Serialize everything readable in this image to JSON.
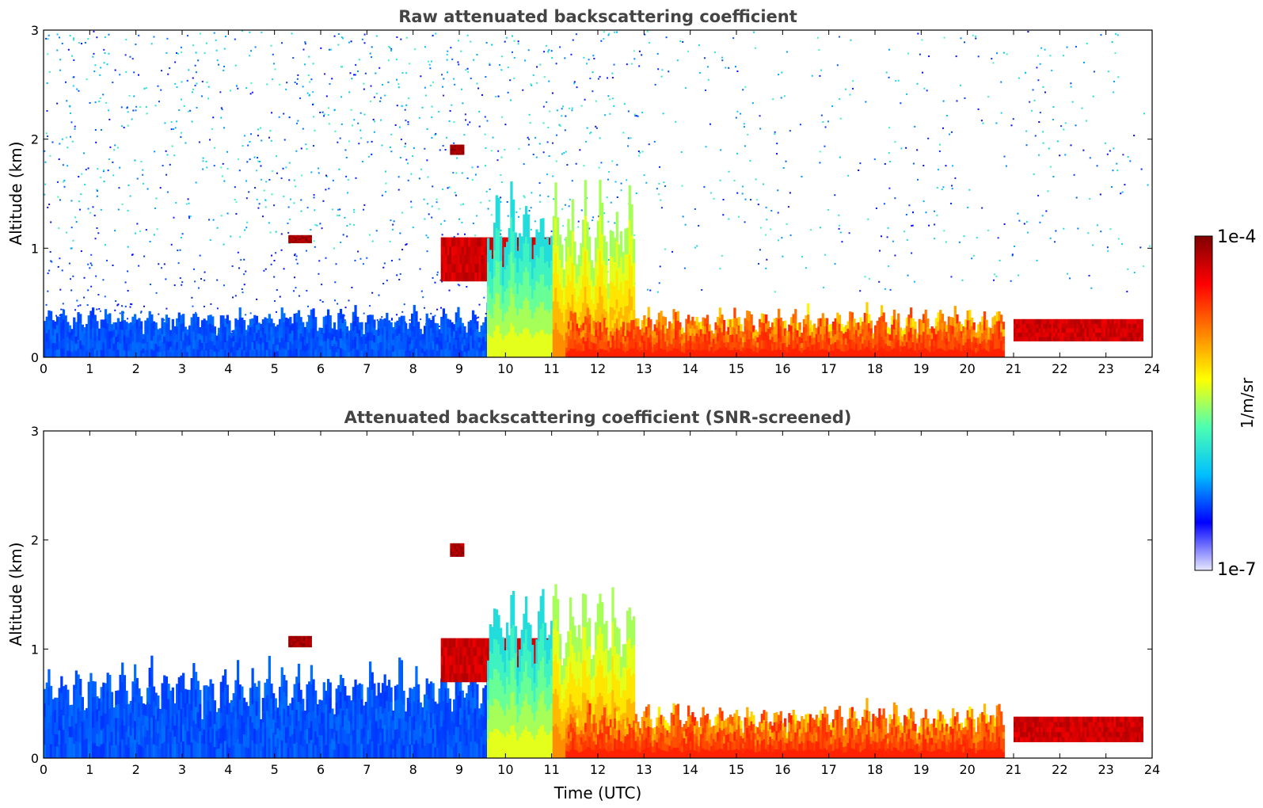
{
  "chart_data": [
    {
      "type": "heatmap",
      "title": "Raw attenuated backscattering coefficient",
      "xlabel": "",
      "ylabel": "Altitude (km)",
      "xlim": [
        0,
        24
      ],
      "ylim": [
        0,
        3
      ],
      "x_ticks": [
        "0",
        "1",
        "2",
        "3",
        "4",
        "5",
        "6",
        "7",
        "8",
        "9",
        "10",
        "11",
        "12",
        "13",
        "14",
        "15",
        "16",
        "17",
        "18",
        "19",
        "20",
        "21",
        "22",
        "23",
        "24"
      ],
      "y_ticks": [
        "0",
        "1",
        "2",
        "3"
      ],
      "background_noise": "sparse high-altitude noise speckles, denser below 1 km before 10 UTC",
      "features": [
        {
          "kind": "layer",
          "t0": 0,
          "t1": 10,
          "z0": 0,
          "z1": 0.45,
          "level": 0.18
        },
        {
          "kind": "cloud",
          "t0": 5.3,
          "t1": 5.8,
          "z0": 1.05,
          "z1": 1.12,
          "level": 1.0
        },
        {
          "kind": "cloud",
          "t0": 8.8,
          "t1": 9.1,
          "z0": 1.86,
          "z1": 1.95,
          "level": 1.0
        },
        {
          "kind": "aerosol_plume",
          "t0": 8.6,
          "t1": 11.2,
          "z0": 0.7,
          "z1": 1.1,
          "level": 0.95
        },
        {
          "kind": "convective_boundary_layer",
          "t0": 9.6,
          "t1": 12.8,
          "z0": 0,
          "z1": 1.5,
          "level": 0.55
        },
        {
          "kind": "boundary_layer",
          "t0": 11.3,
          "t1": 20.8,
          "z0": 0,
          "z1": 0.45,
          "level": 0.82
        },
        {
          "kind": "residual_layer",
          "t0": 21,
          "t1": 23.8,
          "z0": 0.15,
          "z1": 0.35,
          "level": 0.95
        }
      ]
    },
    {
      "type": "heatmap",
      "title": "Attenuated backscattering coefficient (SNR-screened)",
      "xlabel": "Time (UTC)",
      "ylabel": "Altitude (km)",
      "xlim": [
        0,
        24
      ],
      "ylim": [
        0,
        3
      ],
      "x_ticks": [
        "0",
        "1",
        "2",
        "3",
        "4",
        "5",
        "6",
        "7",
        "8",
        "9",
        "10",
        "11",
        "12",
        "13",
        "14",
        "15",
        "16",
        "17",
        "18",
        "19",
        "20",
        "21",
        "22",
        "23",
        "24"
      ],
      "y_ticks": [
        "0",
        "1",
        "2",
        "3"
      ],
      "features": [
        {
          "kind": "layer",
          "t0": 0,
          "t1": 10,
          "z0": 0,
          "z1": 0.85,
          "level": 0.18
        },
        {
          "kind": "cloud",
          "t0": 5.3,
          "t1": 5.8,
          "z0": 1.02,
          "z1": 1.12,
          "level": 1.0
        },
        {
          "kind": "cloud",
          "t0": 8.8,
          "t1": 9.1,
          "z0": 1.85,
          "z1": 1.97,
          "level": 1.0
        },
        {
          "kind": "aerosol_plume",
          "t0": 8.6,
          "t1": 11.2,
          "z0": 0.7,
          "z1": 1.1,
          "level": 0.95
        },
        {
          "kind": "convective_boundary_layer",
          "t0": 9.6,
          "t1": 12.8,
          "z0": 0,
          "z1": 1.6,
          "level": 0.55
        },
        {
          "kind": "boundary_layer",
          "t0": 11.3,
          "t1": 20.8,
          "z0": 0,
          "z1": 0.5,
          "level": 0.82
        },
        {
          "kind": "residual_layer",
          "t0": 21,
          "t1": 23.8,
          "z0": 0.15,
          "z1": 0.38,
          "level": 0.95
        }
      ]
    }
  ],
  "colorbar": {
    "label": "1/m/sr",
    "min_label": "1e-7",
    "max_label": "1e-4",
    "colormap": "jet",
    "colors": [
      "#e8e8ff",
      "#0000ff",
      "#00bfff",
      "#4dffb2",
      "#ffff00",
      "#ff8000",
      "#ff0000",
      "#800000"
    ]
  }
}
